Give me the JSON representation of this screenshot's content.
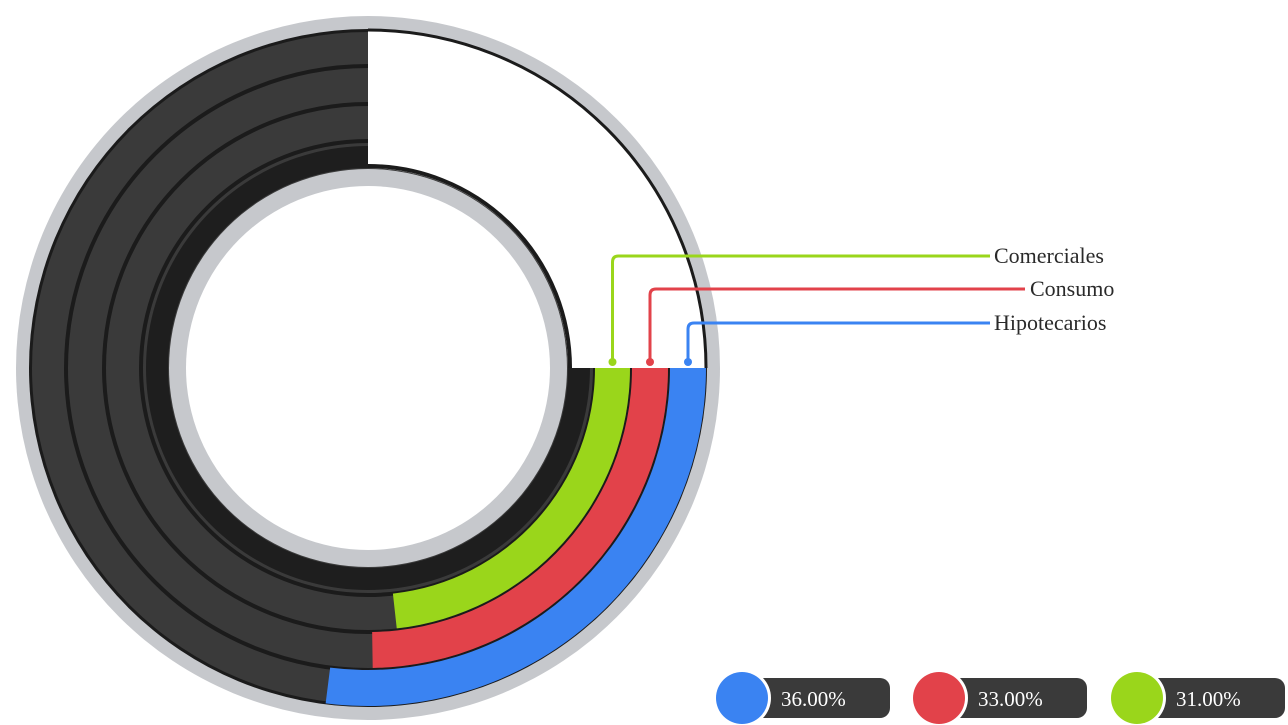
{
  "chart_data": {
    "type": "radial-bar",
    "series": [
      {
        "name": "Hipotecarios",
        "value": 36.0,
        "value_label": "36.00%",
        "color": "#3a83f2"
      },
      {
        "name": "Consumo",
        "value": 33.0,
        "value_label": "33.00%",
        "color": "#e2424a"
      },
      {
        "name": "Comerciales",
        "value": 31.0,
        "value_label": "31.00%",
        "color": "#9ad61b"
      }
    ],
    "max": 100,
    "track_color": "#3a3a3a",
    "frame_color": "#c6c8cc"
  }
}
